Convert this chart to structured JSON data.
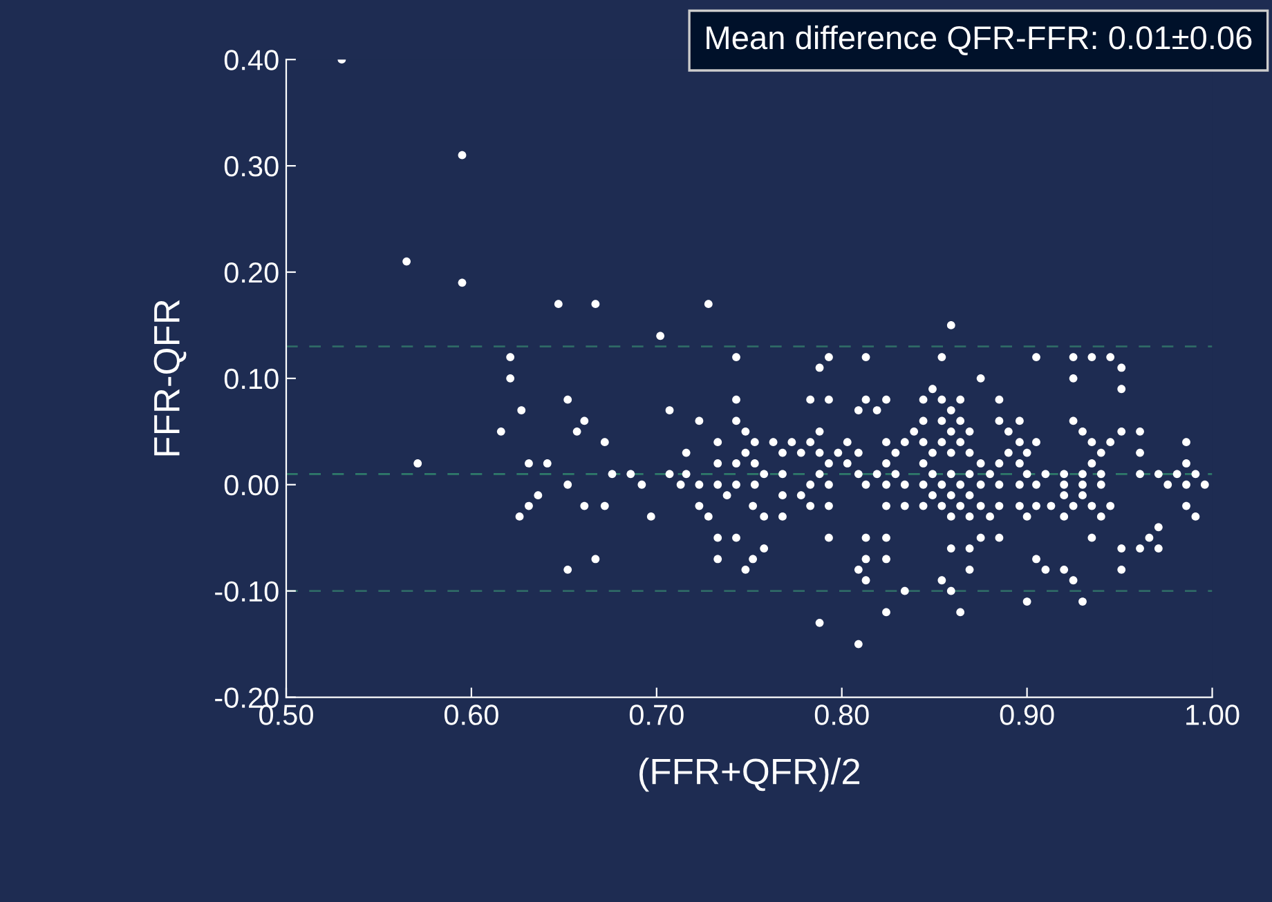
{
  "chart_data": {
    "type": "scatter",
    "xlabel": "(FFR+QFR)/2",
    "ylabel": "FFR-QFR",
    "annotations": [
      "Mean difference QFR-FFR: 0.01±0.06"
    ],
    "xlim": [
      0.5,
      1.0
    ],
    "ylim": [
      -0.2,
      0.4
    ],
    "xticks": [
      {
        "value": 0.5,
        "label": "0.50"
      },
      {
        "value": 0.6,
        "label": "0.60"
      },
      {
        "value": 0.7,
        "label": "0.70"
      },
      {
        "value": 0.8,
        "label": "0.80"
      },
      {
        "value": 0.9,
        "label": "0.90"
      },
      {
        "value": 1.0,
        "label": "1.00"
      }
    ],
    "yticks": [
      {
        "value": -0.2,
        "label": "-0.20"
      },
      {
        "value": -0.1,
        "label": "-0.10"
      },
      {
        "value": 0.0,
        "label": "0.00"
      },
      {
        "value": 0.1,
        "label": "0.10"
      },
      {
        "value": 0.2,
        "label": "0.20"
      },
      {
        "value": 0.3,
        "label": "0.30"
      },
      {
        "value": 0.4,
        "label": "0.40"
      }
    ],
    "grid": false,
    "marker": "circle",
    "ref_lines": [
      {
        "axis": "y",
        "value": 0.13,
        "color": "#2f6a66",
        "line_style": "dashed"
      },
      {
        "axis": "y",
        "value": 0.01,
        "color": "#2f7a6a",
        "line_style": "dashed"
      },
      {
        "axis": "y",
        "value": -0.1,
        "color": "#2f6a66",
        "line_style": "dashed"
      }
    ],
    "series": [
      {
        "color": "#ffffff",
        "x": [
          0.53,
          0.595,
          0.565,
          0.595,
          0.647,
          0.667,
          0.621,
          0.621,
          0.652,
          0.627,
          0.661,
          0.616,
          0.657,
          0.672,
          0.571,
          0.631,
          0.641,
          0.676,
          0.686,
          0.652,
          0.636,
          0.631,
          0.661,
          0.672,
          0.626,
          0.667,
          0.652,
          0.728,
          0.702,
          0.743,
          0.793,
          0.788,
          0.813,
          0.743,
          0.783,
          0.793,
          0.813,
          0.824,
          0.707,
          0.809,
          0.819,
          0.723,
          0.743,
          0.748,
          0.788,
          0.733,
          0.753,
          0.763,
          0.773,
          0.783,
          0.803,
          0.824,
          0.834,
          0.716,
          0.748,
          0.768,
          0.778,
          0.788,
          0.798,
          0.809,
          0.829,
          0.733,
          0.743,
          0.753,
          0.793,
          0.803,
          0.824,
          0.707,
          0.716,
          0.758,
          0.768,
          0.788,
          0.809,
          0.819,
          0.829,
          0.692,
          0.713,
          0.723,
          0.733,
          0.743,
          0.753,
          0.783,
          0.793,
          0.813,
          0.824,
          0.834,
          0.738,
          0.768,
          0.778,
          0.723,
          0.752,
          0.783,
          0.793,
          0.824,
          0.834,
          0.697,
          0.728,
          0.758,
          0.768,
          0.733,
          0.743,
          0.793,
          0.813,
          0.824,
          0.758,
          0.733,
          0.752,
          0.813,
          0.824,
          0.748,
          0.809,
          0.813,
          0.834,
          0.824,
          0.788,
          0.809,
          0.859,
          0.854,
          0.905,
          0.925,
          0.935,
          0.945,
          0.951,
          0.875,
          0.925,
          0.849,
          0.951,
          0.844,
          0.854,
          0.864,
          0.885,
          0.859,
          0.844,
          0.854,
          0.864,
          0.885,
          0.896,
          0.925,
          0.839,
          0.859,
          0.869,
          0.89,
          0.93,
          0.951,
          0.961,
          0.844,
          0.854,
          0.864,
          0.896,
          0.905,
          0.935,
          0.945,
          0.986,
          0.849,
          0.859,
          0.869,
          0.89,
          0.9,
          0.94,
          0.961,
          0.844,
          0.875,
          0.885,
          0.896,
          0.935,
          0.986,
          0.849,
          0.859,
          0.869,
          0.88,
          0.9,
          0.91,
          0.92,
          0.93,
          0.94,
          0.961,
          0.971,
          0.981,
          0.991,
          0.844,
          0.854,
          0.864,
          0.875,
          0.885,
          0.896,
          0.905,
          0.92,
          0.93,
          0.94,
          0.976,
          0.986,
          0.996,
          0.849,
          0.859,
          0.869,
          0.92,
          0.93,
          0.844,
          0.854,
          0.864,
          0.875,
          0.885,
          0.896,
          0.905,
          0.913,
          0.925,
          0.935,
          0.945,
          0.986,
          0.859,
          0.869,
          0.88,
          0.9,
          0.92,
          0.94,
          0.991,
          0.971,
          0.875,
          0.885,
          0.935,
          0.966,
          0.859,
          0.869,
          0.951,
          0.961,
          0.971,
          0.905,
          0.869,
          0.91,
          0.92,
          0.951,
          0.854,
          0.925,
          0.859,
          0.9,
          0.93,
          0.864
        ],
        "values": [
          0.4,
          0.31,
          0.21,
          0.19,
          0.17,
          0.17,
          0.12,
          0.1,
          0.08,
          0.07,
          0.06,
          0.05,
          0.05,
          0.04,
          0.02,
          0.02,
          0.02,
          0.01,
          0.01,
          0.0,
          -0.01,
          -0.02,
          -0.02,
          -0.02,
          -0.03,
          -0.07,
          -0.08,
          0.17,
          0.14,
          0.12,
          0.12,
          0.11,
          0.12,
          0.08,
          0.08,
          0.08,
          0.08,
          0.08,
          0.07,
          0.07,
          0.07,
          0.06,
          0.06,
          0.05,
          0.05,
          0.04,
          0.04,
          0.04,
          0.04,
          0.04,
          0.04,
          0.04,
          0.04,
          0.03,
          0.03,
          0.03,
          0.03,
          0.03,
          0.03,
          0.03,
          0.03,
          0.02,
          0.02,
          0.02,
          0.02,
          0.02,
          0.02,
          0.01,
          0.01,
          0.01,
          0.01,
          0.01,
          0.01,
          0.01,
          0.01,
          0.0,
          0.0,
          0.0,
          0.0,
          0.0,
          0.0,
          0.0,
          0.0,
          0.0,
          0.0,
          0.0,
          -0.01,
          -0.01,
          -0.01,
          -0.02,
          -0.02,
          -0.02,
          -0.02,
          -0.02,
          -0.02,
          -0.03,
          -0.03,
          -0.03,
          -0.03,
          -0.05,
          -0.05,
          -0.05,
          -0.05,
          -0.05,
          -0.06,
          -0.07,
          -0.07,
          -0.07,
          -0.07,
          -0.08,
          -0.08,
          -0.09,
          -0.1,
          -0.12,
          -0.13,
          -0.15,
          0.15,
          0.12,
          0.12,
          0.12,
          0.12,
          0.12,
          0.11,
          0.1,
          0.1,
          0.09,
          0.09,
          0.08,
          0.08,
          0.08,
          0.08,
          0.07,
          0.06,
          0.06,
          0.06,
          0.06,
          0.06,
          0.06,
          0.05,
          0.05,
          0.05,
          0.05,
          0.05,
          0.05,
          0.05,
          0.04,
          0.04,
          0.04,
          0.04,
          0.04,
          0.04,
          0.04,
          0.04,
          0.03,
          0.03,
          0.03,
          0.03,
          0.03,
          0.03,
          0.03,
          0.02,
          0.02,
          0.02,
          0.02,
          0.02,
          0.02,
          0.01,
          0.01,
          0.01,
          0.01,
          0.01,
          0.01,
          0.01,
          0.01,
          0.01,
          0.01,
          0.01,
          0.01,
          0.01,
          0.0,
          0.0,
          0.0,
          0.0,
          0.0,
          0.0,
          0.0,
          0.0,
          0.0,
          0.0,
          0.0,
          0.0,
          0.0,
          -0.01,
          -0.01,
          -0.01,
          -0.01,
          -0.01,
          -0.02,
          -0.02,
          -0.02,
          -0.02,
          -0.02,
          -0.02,
          -0.02,
          -0.02,
          -0.02,
          -0.02,
          -0.02,
          -0.02,
          -0.03,
          -0.03,
          -0.03,
          -0.03,
          -0.03,
          -0.03,
          -0.03,
          -0.04,
          -0.05,
          -0.05,
          -0.05,
          -0.05,
          -0.06,
          -0.06,
          -0.06,
          -0.06,
          -0.06,
          -0.07,
          -0.08,
          -0.08,
          -0.08,
          -0.08,
          -0.09,
          -0.09,
          -0.1,
          -0.11,
          -0.11,
          -0.12
        ]
      }
    ]
  }
}
